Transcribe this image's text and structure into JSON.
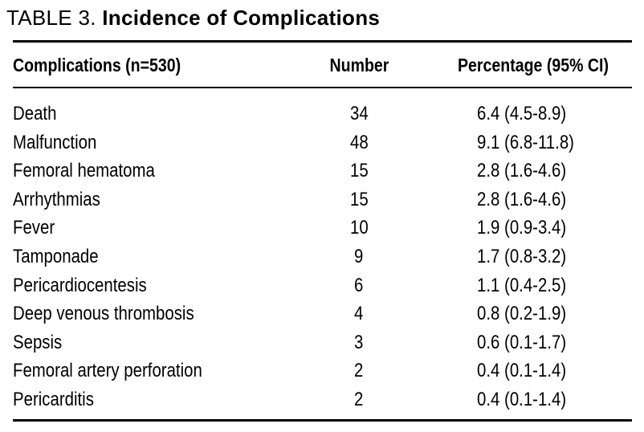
{
  "title": {
    "label": "TABLE 3.",
    "text": "Incidence of Complications"
  },
  "table": {
    "columns": {
      "complications": "Complications (n=530)",
      "number": "Number",
      "percentage": "Percentage (95% CI)"
    },
    "rows": [
      {
        "complication": "Death",
        "number": "34",
        "percentage": "6.4 (4.5-8.9)"
      },
      {
        "complication": "Malfunction",
        "number": "48",
        "percentage": "9.1 (6.8-11.8)"
      },
      {
        "complication": "Femoral hematoma",
        "number": "15",
        "percentage": "2.8 (1.6-4.6)"
      },
      {
        "complication": "Arrhythmias",
        "number": "15",
        "percentage": "2.8 (1.6-4.6)"
      },
      {
        "complication": "Fever",
        "number": "10",
        "percentage": "1.9 (0.9-3.4)"
      },
      {
        "complication": "Tamponade",
        "number": "9",
        "percentage": "1.7 (0.8-3.2)"
      },
      {
        "complication": "Pericardiocentesis",
        "number": "6",
        "percentage": "1.1 (0.4-2.5)"
      },
      {
        "complication": "Deep venous thrombosis",
        "number": "4",
        "percentage": "0.8 (0.2-1.9)"
      },
      {
        "complication": "Sepsis",
        "number": "3",
        "percentage": "0.6 (0.1-1.7)"
      },
      {
        "complication": "Femoral artery perforation",
        "number": "2",
        "percentage": "0.4 (0.1-1.4)"
      },
      {
        "complication": "Pericarditis",
        "number": "2",
        "percentage": "0.4 (0.1-1.4)"
      }
    ]
  },
  "colors": {
    "text": "#000000",
    "background": "#ffffff",
    "rule": "#000000"
  }
}
